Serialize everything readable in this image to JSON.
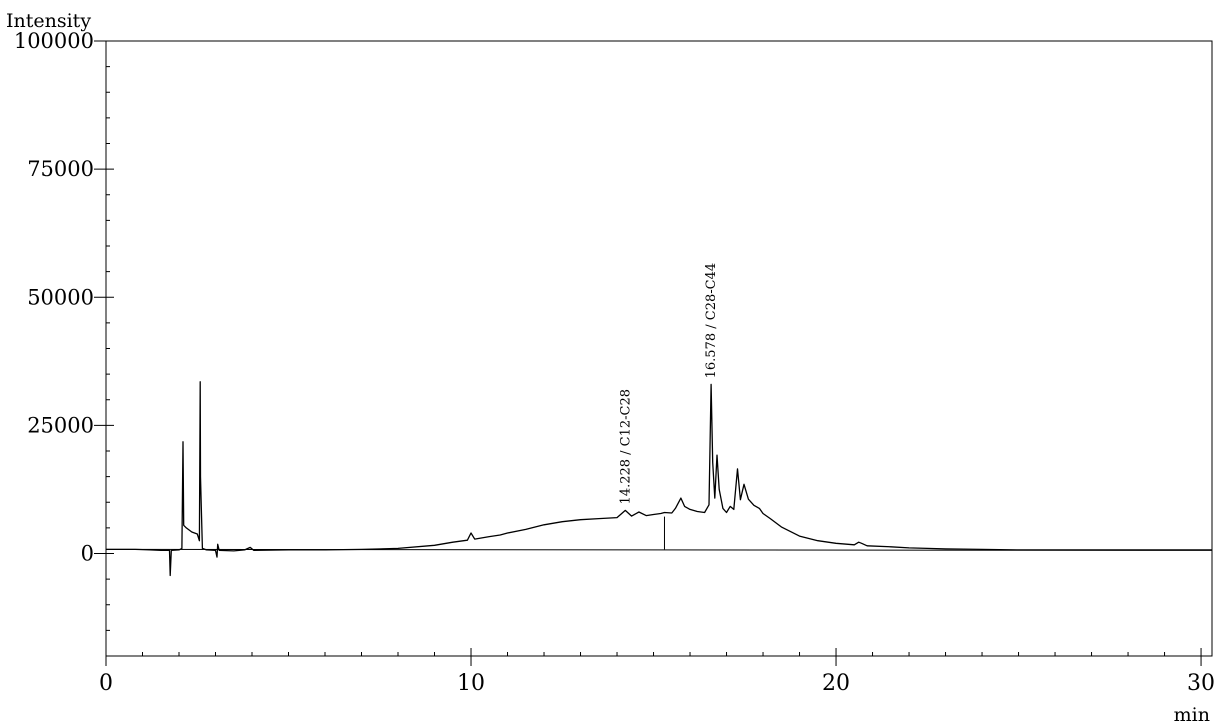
{
  "chart_data": {
    "type": "line",
    "title": "",
    "ylabel": "Intensity",
    "xlabel": "min",
    "xlim": [
      0,
      30.3
    ],
    "ylim": [
      -20000,
      100000
    ],
    "x_ticks": [
      0,
      10,
      20,
      30
    ],
    "x_tick_labels": [
      "0",
      "10",
      "20",
      "30"
    ],
    "y_ticks": [
      0,
      25000,
      50000,
      75000,
      100000
    ],
    "y_tick_labels": [
      "0",
      "25000",
      "50000",
      "75000",
      "100000"
    ],
    "grid": false,
    "legend": "none",
    "series": [
      {
        "color": "#000000",
        "points": [
          [
            0.0,
            800
          ],
          [
            0.8,
            800
          ],
          [
            1.2,
            700
          ],
          [
            1.5,
            600
          ],
          [
            1.74,
            600
          ],
          [
            1.76,
            -4300
          ],
          [
            1.79,
            600
          ],
          [
            2.0,
            700
          ],
          [
            2.08,
            1000
          ],
          [
            2.11,
            21800
          ],
          [
            2.13,
            5500
          ],
          [
            2.2,
            5000
          ],
          [
            2.35,
            4200
          ],
          [
            2.5,
            3800
          ],
          [
            2.56,
            2500
          ],
          [
            2.58,
            33500
          ],
          [
            2.59,
            15000
          ],
          [
            2.61,
            9000
          ],
          [
            2.64,
            1000
          ],
          [
            2.75,
            700
          ],
          [
            3.0,
            600
          ],
          [
            3.04,
            -700
          ],
          [
            3.06,
            1800
          ],
          [
            3.1,
            600
          ],
          [
            3.5,
            500
          ],
          [
            3.8,
            700
          ],
          [
            3.95,
            1200
          ],
          [
            4.05,
            600
          ],
          [
            5.0,
            700
          ],
          [
            6.0,
            700
          ],
          [
            7.0,
            800
          ],
          [
            8.0,
            1000
          ],
          [
            9.0,
            1600
          ],
          [
            9.5,
            2200
          ],
          [
            9.9,
            2600
          ],
          [
            10.0,
            4000
          ],
          [
            10.1,
            2800
          ],
          [
            10.5,
            3300
          ],
          [
            10.8,
            3600
          ],
          [
            11.0,
            4000
          ],
          [
            11.5,
            4700
          ],
          [
            12.0,
            5600
          ],
          [
            12.5,
            6200
          ],
          [
            13.0,
            6600
          ],
          [
            13.5,
            6800
          ],
          [
            14.0,
            7000
          ],
          [
            14.228,
            8400
          ],
          [
            14.4,
            7300
          ],
          [
            14.6,
            8100
          ],
          [
            14.8,
            7400
          ],
          [
            15.0,
            7600
          ],
          [
            15.2,
            7800
          ],
          [
            15.3,
            8000
          ],
          [
            15.5,
            7900
          ],
          [
            15.6,
            8800
          ],
          [
            15.75,
            10800
          ],
          [
            15.85,
            9200
          ],
          [
            16.0,
            8600
          ],
          [
            16.2,
            8200
          ],
          [
            16.4,
            8000
          ],
          [
            16.52,
            9500
          ],
          [
            16.578,
            33000
          ],
          [
            16.62,
            17800
          ],
          [
            16.68,
            10800
          ],
          [
            16.74,
            19200
          ],
          [
            16.8,
            12500
          ],
          [
            16.9,
            8800
          ],
          [
            17.0,
            8000
          ],
          [
            17.1,
            9200
          ],
          [
            17.2,
            8600
          ],
          [
            17.3,
            16500
          ],
          [
            17.38,
            10500
          ],
          [
            17.48,
            13500
          ],
          [
            17.6,
            10600
          ],
          [
            17.75,
            9400
          ],
          [
            17.9,
            8800
          ],
          [
            18.0,
            7800
          ],
          [
            18.2,
            6800
          ],
          [
            18.5,
            5200
          ],
          [
            19.0,
            3400
          ],
          [
            19.5,
            2500
          ],
          [
            20.0,
            2000
          ],
          [
            20.5,
            1700
          ],
          [
            20.62,
            2200
          ],
          [
            20.7,
            2000
          ],
          [
            20.85,
            1500
          ],
          [
            21.5,
            1300
          ],
          [
            22.0,
            1100
          ],
          [
            23.0,
            900
          ],
          [
            24.0,
            800
          ],
          [
            25.0,
            700
          ],
          [
            27.0,
            700
          ],
          [
            28.2,
            700
          ],
          [
            30.3,
            700
          ]
        ]
      }
    ],
    "baseline": [
      [
        0.0,
        800
      ],
      [
        30.3,
        600
      ]
    ],
    "integration_marker": [
      [
        15.3,
        800
      ],
      [
        15.3,
        7200
      ]
    ],
    "annotations": [
      {
        "x": 14.228,
        "y": 8400,
        "text": "14.228 / C12-C28"
      },
      {
        "x": 16.578,
        "y": 33000,
        "text": "16.578 / C28-C44"
      }
    ]
  }
}
